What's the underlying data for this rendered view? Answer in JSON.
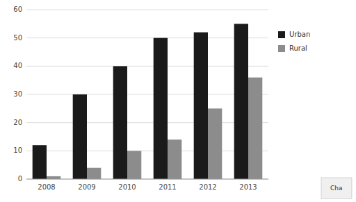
{
  "chart_data": {
    "type": "bar",
    "categories": [
      "2008",
      "2009",
      "2010",
      "2011",
      "2012",
      "2013"
    ],
    "series": [
      {
        "name": "Urban",
        "color": "#1a1a1a",
        "values": [
          12,
          30,
          40,
          50,
          52,
          55
        ]
      },
      {
        "name": "Rural",
        "color": "#8c8c8c",
        "values": [
          1,
          4,
          10,
          14,
          25,
          36
        ]
      }
    ],
    "ylim": [
      0,
      60
    ],
    "yticks": [
      0,
      10,
      20,
      30,
      40,
      50,
      60
    ],
    "grid": true,
    "legend": "right",
    "annotation": "Cha"
  }
}
